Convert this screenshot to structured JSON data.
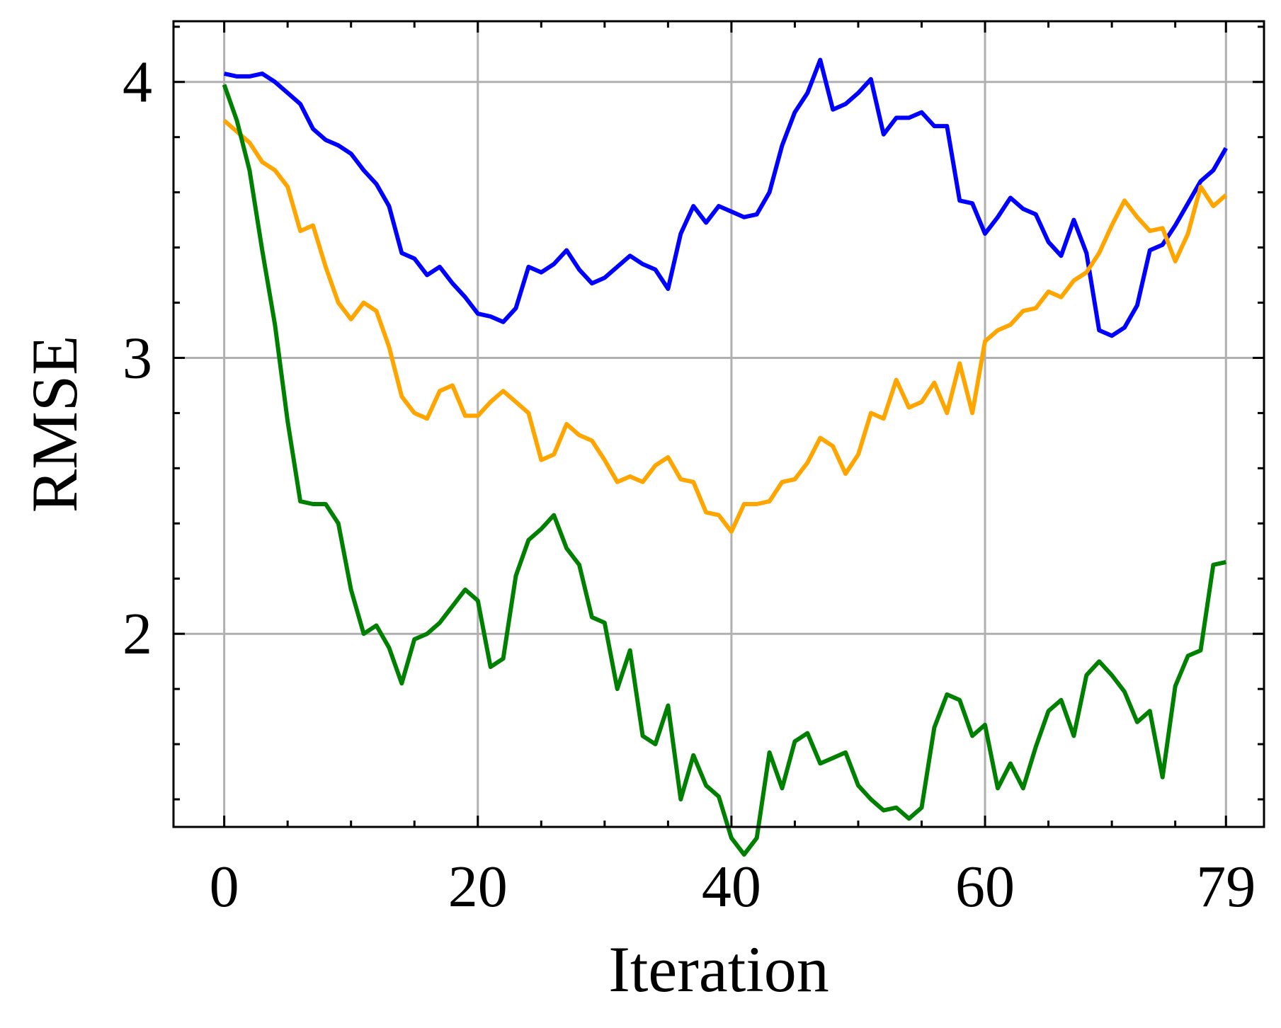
{
  "chart_data": {
    "type": "line",
    "title": "",
    "xlabel": "Iteration",
    "ylabel": "RMSE",
    "xlim": [
      -4,
      82
    ],
    "ylim": [
      1.3,
      4.22
    ],
    "x_ticks": [
      0,
      20,
      40,
      60,
      79
    ],
    "x_tick_labels": [
      "0",
      "20",
      "40",
      "60",
      "79"
    ],
    "y_ticks": [
      2,
      3,
      4
    ],
    "y_tick_labels": [
      "2",
      "3",
      "4"
    ],
    "grid": true,
    "legend": "none",
    "x": [
      0,
      1,
      2,
      3,
      4,
      5,
      6,
      7,
      8,
      9,
      10,
      11,
      12,
      13,
      14,
      15,
      16,
      17,
      18,
      19,
      20,
      21,
      22,
      23,
      24,
      25,
      26,
      27,
      28,
      29,
      30,
      31,
      32,
      33,
      34,
      35,
      36,
      37,
      38,
      39,
      40,
      41,
      42,
      43,
      44,
      45,
      46,
      47,
      48,
      49,
      50,
      51,
      52,
      53,
      54,
      55,
      56,
      57,
      58,
      59,
      60,
      61,
      62,
      63,
      64,
      65,
      66,
      67,
      68,
      69,
      70,
      71,
      72,
      73,
      74,
      75,
      76,
      77,
      78,
      79
    ],
    "series": [
      {
        "color": "#0000ff",
        "values": [
          4.03,
          4.02,
          4.02,
          4.03,
          4.0,
          3.96,
          3.92,
          3.83,
          3.79,
          3.77,
          3.74,
          3.68,
          3.63,
          3.55,
          3.38,
          3.36,
          3.3,
          3.33,
          3.27,
          3.22,
          3.16,
          3.15,
          3.13,
          3.18,
          3.33,
          3.31,
          3.34,
          3.39,
          3.32,
          3.27,
          3.29,
          3.33,
          3.37,
          3.34,
          3.32,
          3.25,
          3.45,
          3.55,
          3.49,
          3.55,
          3.53,
          3.51,
          3.52,
          3.6,
          3.77,
          3.89,
          3.96,
          4.08,
          3.9,
          3.92,
          3.96,
          4.01,
          3.81,
          3.87,
          3.87,
          3.89,
          3.84,
          3.84,
          3.57,
          3.56,
          3.45,
          3.51,
          3.58,
          3.54,
          3.52,
          3.42,
          3.37,
          3.5,
          3.38,
          3.1,
          3.08,
          3.11,
          3.19,
          3.39,
          3.41,
          3.48,
          3.56,
          3.64,
          3.68,
          3.76
        ]
      },
      {
        "color": "#ffa500",
        "values": [
          3.86,
          3.82,
          3.78,
          3.71,
          3.68,
          3.62,
          3.46,
          3.48,
          3.33,
          3.2,
          3.14,
          3.2,
          3.17,
          3.04,
          2.86,
          2.8,
          2.78,
          2.88,
          2.9,
          2.79,
          2.79,
          2.84,
          2.88,
          2.84,
          2.8,
          2.63,
          2.65,
          2.76,
          2.72,
          2.7,
          2.63,
          2.55,
          2.57,
          2.55,
          2.61,
          2.64,
          2.56,
          2.55,
          2.44,
          2.43,
          2.37,
          2.47,
          2.47,
          2.48,
          2.55,
          2.56,
          2.62,
          2.71,
          2.68,
          2.58,
          2.65,
          2.8,
          2.78,
          2.92,
          2.82,
          2.84,
          2.91,
          2.8,
          2.98,
          2.8,
          3.06,
          3.1,
          3.12,
          3.17,
          3.18,
          3.24,
          3.22,
          3.28,
          3.31,
          3.38,
          3.48,
          3.57,
          3.51,
          3.46,
          3.47,
          3.35,
          3.45,
          3.62,
          3.55,
          3.59
        ]
      },
      {
        "color": "#008000",
        "values": [
          3.99,
          3.86,
          3.68,
          3.39,
          3.12,
          2.77,
          2.48,
          2.47,
          2.47,
          2.4,
          2.16,
          2.0,
          2.03,
          1.95,
          1.82,
          1.98,
          2.0,
          2.04,
          2.1,
          2.16,
          2.12,
          1.88,
          1.91,
          2.21,
          2.34,
          2.38,
          2.43,
          2.31,
          2.25,
          2.06,
          2.04,
          1.8,
          1.94,
          1.63,
          1.6,
          1.74,
          1.4,
          1.56,
          1.45,
          1.41,
          1.26,
          1.2,
          1.26,
          1.57,
          1.44,
          1.61,
          1.64,
          1.53,
          1.55,
          1.57,
          1.45,
          1.4,
          1.36,
          1.37,
          1.33,
          1.37,
          1.66,
          1.78,
          1.76,
          1.63,
          1.67,
          1.44,
          1.53,
          1.44,
          1.59,
          1.72,
          1.76,
          1.63,
          1.85,
          1.9,
          1.85,
          1.79,
          1.68,
          1.72,
          1.48,
          1.81,
          1.92,
          1.94,
          2.25,
          2.26
        ]
      }
    ]
  }
}
